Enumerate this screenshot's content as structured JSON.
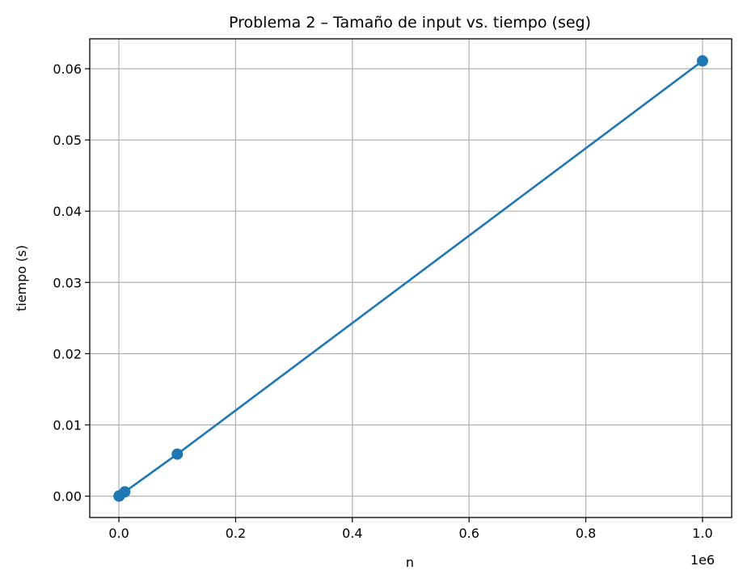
{
  "chart_data": {
    "type": "line",
    "title": "Problema 2 – Tamaño de input vs. tiempo (seg)",
    "xlabel": "n",
    "ylabel": "tiempo (s)",
    "x_offset_label": "1e6",
    "xlim": [
      -0.05,
      1.05
    ],
    "ylim": [
      -0.003,
      0.0642
    ],
    "x_ticks": [
      0.0,
      0.2,
      0.4,
      0.6,
      0.8,
      1.0
    ],
    "x_tick_labels": [
      "0.0",
      "0.2",
      "0.4",
      "0.6",
      "0.8",
      "1.0"
    ],
    "y_ticks": [
      0.0,
      0.01,
      0.02,
      0.03,
      0.04,
      0.05,
      0.06
    ],
    "y_tick_labels": [
      "0.00",
      "0.01",
      "0.02",
      "0.03",
      "0.04",
      "0.05",
      "0.06"
    ],
    "grid": true,
    "series": [
      {
        "color": "#1f77b4",
        "marker": "circle",
        "x": [
          0.0001,
          0.001,
          0.01,
          0.1,
          1.0
        ],
        "y": [
          6e-06,
          6e-05,
          0.0006,
          0.0059,
          0.0611
        ]
      }
    ]
  }
}
